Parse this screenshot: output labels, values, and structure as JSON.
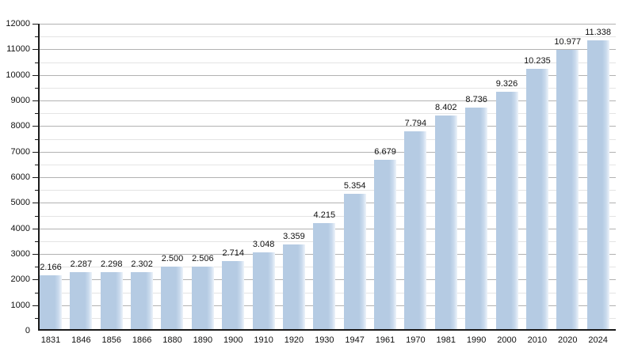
{
  "chart_data": {
    "type": "bar",
    "title": "",
    "xlabel": "",
    "ylabel": "",
    "categories": [
      "1831",
      "1846",
      "1856",
      "1866",
      "1880",
      "1890",
      "1900",
      "1910",
      "1920",
      "1930",
      "1947",
      "1961",
      "1970",
      "1981",
      "1990",
      "2000",
      "2010",
      "2020",
      "2024"
    ],
    "values": [
      2166,
      2287,
      2298,
      2302,
      2500,
      2506,
      2714,
      3048,
      3359,
      4215,
      5354,
      6679,
      7794,
      8402,
      8736,
      9326,
      10235,
      10977,
      11338
    ],
    "value_labels": [
      "2.166",
      "2.287",
      "2.298",
      "2.302",
      "2.500",
      "2.506",
      "2.714",
      "3.048",
      "3.359",
      "4.215",
      "5.354",
      "6.679",
      "7.794",
      "8.402",
      "8.736",
      "9.326",
      "10.235",
      "10.977",
      "11.338"
    ],
    "ylim": [
      0,
      12000
    ],
    "y_major_interval": 1000,
    "y_minor_interval": 500,
    "y_tick_labels": [
      "0",
      "1000",
      "2000",
      "3000",
      "4000",
      "5000",
      "6000",
      "7000",
      "8000",
      "9000",
      "10000",
      "11000",
      "12000"
    ],
    "grid": "on",
    "legend": "none",
    "colors": {
      "bar_fill": "#b5cbe3",
      "bar_fill_fade_mid": "#c9daed",
      "bar_fill_fade_edge": "#edf3fa",
      "grid_major": "#b2b2b2",
      "grid_minor": "#e4e4e4",
      "axis": "#1a1a1a",
      "text": "#111111",
      "background": "#ffffff"
    }
  }
}
